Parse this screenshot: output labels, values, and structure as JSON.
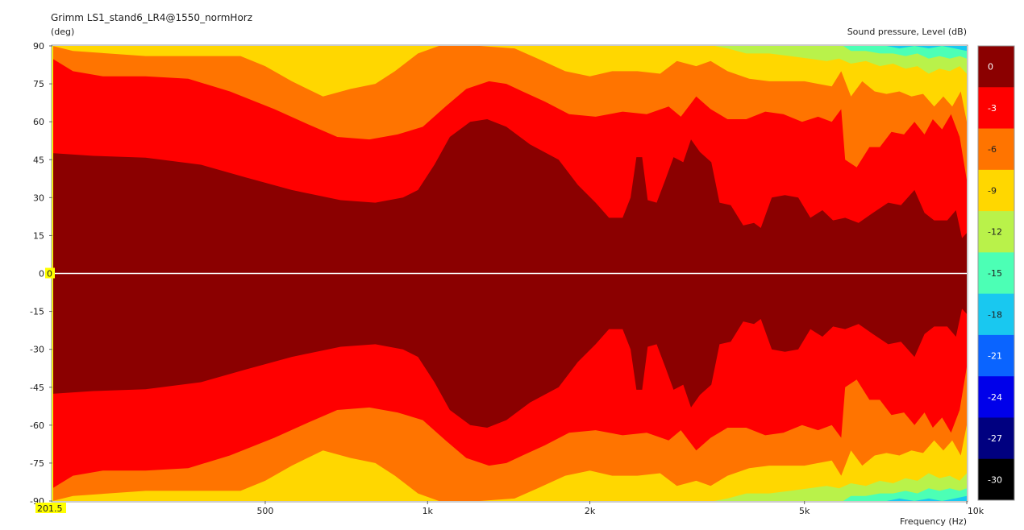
{
  "chart_data": {
    "type": "heatmap",
    "title": "Grimm LS1_stand6_LR4@1550_normHorz",
    "ylabel": "(deg)",
    "xlabel": "Frequency  (Hz)",
    "colorbar_label": "Sound pressure, Level  (dB)",
    "x_scale": "log",
    "xlim": [
      201.5,
      10000
    ],
    "ylim": [
      -90,
      90
    ],
    "x_ticks": [
      {
        "value": 500,
        "label": "500"
      },
      {
        "value": 1000,
        "label": "1k"
      },
      {
        "value": 2000,
        "label": "2k"
      },
      {
        "value": 5000,
        "label": "5k"
      },
      {
        "value": 10000,
        "label": "10k"
      }
    ],
    "x_min_label": "201.5",
    "y_ticks": [
      "90",
      "75",
      "60",
      "45",
      "30",
      "15",
      "0",
      "-15",
      "-30",
      "-45",
      "-60",
      "-75",
      "-90"
    ],
    "y_zero_marker": "0",
    "levels": [
      {
        "label": "0",
        "color": "#8b0000"
      },
      {
        "label": "-3",
        "color": "#ff0000"
      },
      {
        "label": "-6",
        "color": "#ff7400"
      },
      {
        "label": "-9",
        "color": "#ffd700"
      },
      {
        "label": "-12",
        "color": "#b9f24a"
      },
      {
        "label": "-15",
        "color": "#4cffb5"
      },
      {
        "label": "-18",
        "color": "#19c8f0"
      },
      {
        "label": "-21",
        "color": "#0a64ff"
      },
      {
        "label": "-24",
        "color": "#0000ea"
      },
      {
        "label": "-27",
        "color": "#000080"
      },
      {
        "label": "-30",
        "color": "#000000"
      }
    ],
    "contours": [
      {
        "level": "-3",
        "points": [
          [
            201.5,
            47.6
          ],
          [
            240,
            46.5
          ],
          [
            300,
            45.8
          ],
          [
            380,
            43
          ],
          [
            460,
            38
          ],
          [
            560,
            33
          ],
          [
            690,
            29
          ],
          [
            800,
            28
          ],
          [
            900,
            30
          ],
          [
            960,
            33
          ],
          [
            1030,
            43
          ],
          [
            1100,
            54
          ],
          [
            1200,
            60
          ],
          [
            1290,
            61
          ],
          [
            1400,
            58
          ],
          [
            1550,
            51
          ],
          [
            1750,
            45
          ],
          [
            1900,
            35
          ],
          [
            2050,
            28
          ],
          [
            2170,
            22
          ],
          [
            2300,
            22
          ],
          [
            2380,
            30
          ],
          [
            2440,
            46
          ],
          [
            2500,
            46
          ],
          [
            2560,
            29
          ],
          [
            2660,
            28
          ],
          [
            2760,
            37
          ],
          [
            2860,
            46
          ],
          [
            2980,
            44
          ],
          [
            3080,
            53
          ],
          [
            3200,
            48
          ],
          [
            3360,
            44
          ],
          [
            3480,
            28
          ],
          [
            3650,
            27
          ],
          [
            3850,
            19
          ],
          [
            4030,
            20
          ],
          [
            4150,
            18
          ],
          [
            4350,
            30
          ],
          [
            4600,
            31
          ],
          [
            4870,
            30
          ],
          [
            5130,
            22
          ],
          [
            5400,
            25
          ],
          [
            5650,
            21
          ],
          [
            5950,
            22
          ],
          [
            6300,
            20
          ],
          [
            6700,
            24
          ],
          [
            7150,
            28
          ],
          [
            7550,
            27
          ],
          [
            8000,
            33
          ],
          [
            8350,
            24
          ],
          [
            8700,
            21
          ],
          [
            9200,
            21
          ],
          [
            9550,
            25
          ],
          [
            9800,
            14
          ],
          [
            10000,
            16
          ]
        ]
      },
      {
        "level": "-6",
        "points": [
          [
            201.5,
            85
          ],
          [
            220,
            80
          ],
          [
            250,
            78
          ],
          [
            300,
            78
          ],
          [
            360,
            77
          ],
          [
            430,
            72
          ],
          [
            520,
            65
          ],
          [
            600,
            59
          ],
          [
            680,
            54
          ],
          [
            780,
            53
          ],
          [
            880,
            55
          ],
          [
            980,
            58
          ],
          [
            1080,
            66
          ],
          [
            1180,
            73
          ],
          [
            1300,
            76
          ],
          [
            1400,
            75
          ],
          [
            1500,
            72
          ],
          [
            1650,
            68
          ],
          [
            1830,
            63
          ],
          [
            2050,
            62
          ],
          [
            2300,
            64
          ],
          [
            2550,
            63
          ],
          [
            2800,
            66
          ],
          [
            2950,
            62
          ],
          [
            3150,
            70
          ],
          [
            3350,
            65
          ],
          [
            3600,
            61
          ],
          [
            3900,
            61
          ],
          [
            4230,
            64
          ],
          [
            4570,
            63
          ],
          [
            4950,
            60
          ],
          [
            5300,
            62
          ],
          [
            5620,
            60
          ],
          [
            5850,
            65
          ],
          [
            5950,
            45
          ],
          [
            6250,
            42
          ],
          [
            6600,
            50
          ],
          [
            6900,
            50
          ],
          [
            7250,
            56
          ],
          [
            7650,
            55
          ],
          [
            8000,
            60
          ],
          [
            8350,
            55
          ],
          [
            8650,
            61
          ],
          [
            9000,
            57
          ],
          [
            9350,
            63
          ],
          [
            9700,
            54
          ],
          [
            10000,
            37
          ]
        ]
      },
      {
        "level": "-9",
        "points": [
          [
            201.5,
            90
          ],
          [
            220,
            88
          ],
          [
            300,
            86
          ],
          [
            380,
            86
          ],
          [
            450,
            86
          ],
          [
            500,
            82
          ],
          [
            560,
            76
          ],
          [
            640,
            70
          ],
          [
            720,
            73
          ],
          [
            800,
            75
          ],
          [
            870,
            80
          ],
          [
            960,
            87
          ],
          [
            1050,
            90
          ],
          [
            1250,
            90
          ],
          [
            1450,
            89
          ],
          [
            1600,
            85
          ],
          [
            1800,
            80
          ],
          [
            2000,
            78
          ],
          [
            2200,
            80
          ],
          [
            2450,
            80
          ],
          [
            2700,
            79
          ],
          [
            2900,
            84
          ],
          [
            3150,
            82
          ],
          [
            3350,
            84
          ],
          [
            3600,
            80
          ],
          [
            3950,
            77
          ],
          [
            4300,
            76
          ],
          [
            4650,
            76
          ],
          [
            5000,
            76
          ],
          [
            5300,
            75
          ],
          [
            5620,
            74
          ],
          [
            5850,
            80
          ],
          [
            6100,
            70
          ],
          [
            6400,
            76
          ],
          [
            6750,
            72
          ],
          [
            7100,
            71
          ],
          [
            7500,
            72
          ],
          [
            7900,
            70
          ],
          [
            8300,
            71
          ],
          [
            8700,
            66
          ],
          [
            9050,
            70
          ],
          [
            9400,
            66
          ],
          [
            9750,
            72
          ],
          [
            10000,
            60
          ]
        ]
      },
      {
        "level": "-12",
        "points": [
          [
            3400,
            90
          ],
          [
            3600,
            89
          ],
          [
            3900,
            87
          ],
          [
            4300,
            87
          ],
          [
            4700,
            86
          ],
          [
            5100,
            85
          ],
          [
            5500,
            84
          ],
          [
            5800,
            85
          ],
          [
            6100,
            83
          ],
          [
            6500,
            84
          ],
          [
            6900,
            82
          ],
          [
            7300,
            83
          ],
          [
            7700,
            81
          ],
          [
            8100,
            82
          ],
          [
            8500,
            79
          ],
          [
            8900,
            81
          ],
          [
            9300,
            80
          ],
          [
            9700,
            82
          ],
          [
            10000,
            79
          ]
        ]
      },
      {
        "level": "-15",
        "points": [
          [
            5900,
            90
          ],
          [
            6100,
            88
          ],
          [
            6500,
            88
          ],
          [
            6900,
            87
          ],
          [
            7300,
            87
          ],
          [
            7700,
            86
          ],
          [
            8100,
            87
          ],
          [
            8500,
            85
          ],
          [
            8900,
            86
          ],
          [
            9300,
            85
          ],
          [
            9700,
            86
          ],
          [
            10000,
            85
          ]
        ]
      },
      {
        "level": "-18",
        "points": [
          [
            7100,
            90
          ],
          [
            7500,
            89
          ],
          [
            8000,
            90
          ],
          [
            8500,
            89
          ],
          [
            9000,
            90
          ],
          [
            9500,
            89
          ],
          [
            10000,
            88
          ]
        ]
      }
    ]
  }
}
